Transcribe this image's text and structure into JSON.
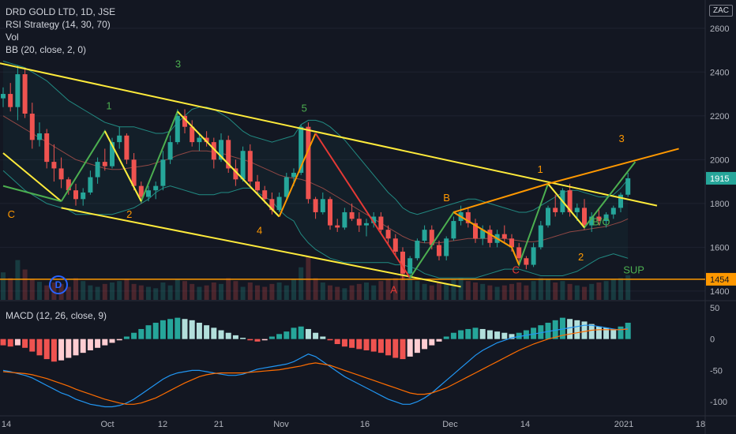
{
  "legend": {
    "title": "DRD GOLD LTD, 1D, JSE",
    "indicators": [
      "RSI Strategy (14, 30, 70)",
      "Vol",
      "BB (20, close, 2, 0)"
    ],
    "macd": "MACD (12, 26, close, 9)"
  },
  "currency": "ZAC",
  "logo_letter": "D",
  "colors": {
    "background": "#131722",
    "up": "#26a69a",
    "down": "#ef5350",
    "yellow_line": "#ffeb3b",
    "orange_line": "#ff9800",
    "green_line": "#4caf50",
    "red_line": "#e53935",
    "bollinger": "#26a69a",
    "support": "#ff9800",
    "macd_line": "#2196f3",
    "signal_line": "#ff6d00"
  },
  "chart_data": {
    "type": "candlestick",
    "price_axis": {
      "ticks": [
        "2600",
        "2400",
        "2200",
        "2000",
        "1800",
        "1600",
        "1400"
      ],
      "range": [
        1360,
        2700
      ]
    },
    "macd_axis": {
      "ticks": [
        "50",
        "0",
        "-50",
        "-100"
      ],
      "range": [
        -120,
        60
      ]
    },
    "x_axis": {
      "ticks": [
        "14",
        "Oct",
        "12",
        "21",
        "Nov",
        "16",
        "Dec",
        "14",
        "2021",
        "18"
      ]
    },
    "last_price": {
      "value": 1915,
      "label": "1915"
    },
    "support": {
      "value": 1454,
      "label": "1454",
      "text": "SUP"
    },
    "candles": [
      [
        2280,
        2330,
        2240,
        2300
      ],
      [
        2300,
        2350,
        2220,
        2240
      ],
      [
        2240,
        2430,
        2180,
        2390
      ],
      [
        2390,
        2420,
        2190,
        2210
      ],
      [
        2210,
        2260,
        2050,
        2090
      ],
      [
        2090,
        2170,
        2060,
        2120
      ],
      [
        2120,
        2140,
        1960,
        1990
      ],
      [
        1990,
        2070,
        1900,
        1960
      ],
      [
        1960,
        2010,
        1870,
        1910
      ],
      [
        1910,
        1920,
        1840,
        1860
      ],
      [
        1860,
        1890,
        1790,
        1820
      ],
      [
        1820,
        1870,
        1790,
        1850
      ],
      [
        1850,
        1950,
        1840,
        1920
      ],
      [
        1920,
        2010,
        1890,
        1990
      ],
      [
        1990,
        2050,
        1950,
        1970
      ],
      [
        1970,
        2100,
        1960,
        2080
      ],
      [
        2080,
        2150,
        2050,
        2110
      ],
      [
        2110,
        2120,
        1980,
        2000
      ],
      [
        2000,
        2030,
        1860,
        1880
      ],
      [
        1880,
        1900,
        1800,
        1830
      ],
      [
        1830,
        1880,
        1810,
        1860
      ],
      [
        1860,
        1900,
        1820,
        1880
      ],
      [
        1880,
        2040,
        1860,
        2000
      ],
      [
        2000,
        2110,
        1980,
        2080
      ],
      [
        2080,
        2230,
        2070,
        2200
      ],
      [
        2200,
        2230,
        2120,
        2150
      ],
      [
        2150,
        2180,
        2060,
        2080
      ],
      [
        2080,
        2120,
        2040,
        2100
      ],
      [
        2100,
        2130,
        2060,
        2080
      ],
      [
        2080,
        2100,
        1960,
        2000
      ],
      [
        2000,
        2120,
        1990,
        2090
      ],
      [
        2090,
        2110,
        1940,
        1960
      ],
      [
        1960,
        2000,
        1880,
        1910
      ],
      [
        1910,
        2060,
        1900,
        2040
      ],
      [
        2040,
        2070,
        1880,
        1900
      ],
      [
        1900,
        1930,
        1840,
        1860
      ],
      [
        1860,
        1880,
        1800,
        1820
      ],
      [
        1820,
        1850,
        1750,
        1770
      ],
      [
        1770,
        1850,
        1760,
        1830
      ],
      [
        1830,
        1940,
        1820,
        1920
      ],
      [
        1920,
        1960,
        1880,
        1940
      ],
      [
        1940,
        2160,
        1930,
        2150
      ],
      [
        2150,
        2170,
        1800,
        1820
      ],
      [
        1820,
        1830,
        1730,
        1760
      ],
      [
        1760,
        1850,
        1750,
        1820
      ],
      [
        1820,
        1830,
        1680,
        1700
      ],
      [
        1700,
        1730,
        1670,
        1690
      ],
      [
        1690,
        1780,
        1680,
        1760
      ],
      [
        1760,
        1800,
        1720,
        1730
      ],
      [
        1730,
        1760,
        1670,
        1700
      ],
      [
        1700,
        1730,
        1650,
        1710
      ],
      [
        1710,
        1760,
        1690,
        1740
      ],
      [
        1740,
        1760,
        1660,
        1680
      ],
      [
        1680,
        1700,
        1610,
        1640
      ],
      [
        1640,
        1660,
        1560,
        1580
      ],
      [
        1580,
        1600,
        1450,
        1480
      ],
      [
        1480,
        1560,
        1460,
        1550
      ],
      [
        1550,
        1640,
        1540,
        1630
      ],
      [
        1630,
        1700,
        1620,
        1680
      ],
      [
        1680,
        1700,
        1590,
        1610
      ],
      [
        1610,
        1630,
        1540,
        1560
      ],
      [
        1560,
        1650,
        1540,
        1640
      ],
      [
        1640,
        1740,
        1630,
        1720
      ],
      [
        1720,
        1790,
        1700,
        1760
      ],
      [
        1760,
        1780,
        1690,
        1710
      ],
      [
        1710,
        1730,
        1620,
        1640
      ],
      [
        1640,
        1700,
        1610,
        1680
      ],
      [
        1680,
        1700,
        1600,
        1620
      ],
      [
        1620,
        1680,
        1600,
        1660
      ],
      [
        1660,
        1700,
        1620,
        1640
      ],
      [
        1640,
        1660,
        1580,
        1600
      ],
      [
        1600,
        1620,
        1530,
        1550
      ],
      [
        1550,
        1560,
        1500,
        1520
      ],
      [
        1520,
        1620,
        1510,
        1600
      ],
      [
        1600,
        1720,
        1590,
        1700
      ],
      [
        1700,
        1790,
        1690,
        1780
      ],
      [
        1780,
        1840,
        1740,
        1760
      ],
      [
        1760,
        1870,
        1750,
        1860
      ],
      [
        1860,
        1890,
        1740,
        1760
      ],
      [
        1760,
        1800,
        1720,
        1780
      ],
      [
        1780,
        1820,
        1680,
        1700
      ],
      [
        1700,
        1760,
        1670,
        1740
      ],
      [
        1740,
        1780,
        1700,
        1720
      ],
      [
        1720,
        1760,
        1690,
        1750
      ],
      [
        1750,
        1790,
        1730,
        1780
      ],
      [
        1780,
        1850,
        1760,
        1840
      ],
      [
        1840,
        1940,
        1830,
        1915
      ]
    ],
    "volume": [
      38,
      30,
      55,
      42,
      28,
      25,
      20,
      24,
      22,
      18,
      30,
      26,
      20,
      18,
      22,
      24,
      26,
      28,
      22,
      20,
      18,
      16,
      24,
      20,
      28,
      26,
      22,
      18,
      20,
      24,
      22,
      30,
      26,
      18,
      24,
      20,
      18,
      22,
      24,
      20,
      28,
      45,
      60,
      30,
      24,
      20,
      18,
      16,
      20,
      22,
      24,
      20,
      26,
      28,
      30,
      40,
      34,
      26,
      22,
      20,
      24,
      22,
      28,
      30,
      26,
      24,
      22,
      20,
      18,
      20,
      22,
      24,
      20,
      26,
      30,
      28,
      24,
      26,
      22,
      20,
      18,
      22,
      24,
      26,
      28,
      30,
      34
    ],
    "macd_hist": [
      -10,
      -12,
      -10,
      -14,
      -20,
      -26,
      -32,
      -36,
      -34,
      -30,
      -26,
      -22,
      -18,
      -14,
      -10,
      -6,
      -2,
      4,
      10,
      16,
      22,
      26,
      30,
      32,
      34,
      32,
      30,
      26,
      22,
      18,
      14,
      10,
      6,
      2,
      -2,
      -4,
      -2,
      4,
      8,
      12,
      18,
      20,
      16,
      10,
      4,
      -2,
      -8,
      -12,
      -14,
      -16,
      -18,
      -20,
      -22,
      -26,
      -30,
      -32,
      -28,
      -22,
      -16,
      -10,
      -4,
      4,
      10,
      14,
      16,
      18,
      16,
      14,
      12,
      10,
      8,
      10,
      14,
      18,
      22,
      26,
      30,
      34,
      32,
      30,
      28,
      24,
      20,
      18,
      16,
      20,
      26
    ],
    "macd_line": [
      -50,
      -52,
      -55,
      -58,
      -62,
      -68,
      -74,
      -80,
      -86,
      -90,
      -96,
      -100,
      -104,
      -106,
      -108,
      -108,
      -106,
      -102,
      -96,
      -88,
      -80,
      -72,
      -64,
      -58,
      -54,
      -52,
      -50,
      -50,
      -52,
      -54,
      -56,
      -58,
      -58,
      -56,
      -52,
      -48,
      -46,
      -44,
      -42,
      -40,
      -36,
      -30,
      -24,
      -28,
      -36,
      -44,
      -52,
      -60,
      -66,
      -72,
      -78,
      -84,
      -90,
      -96,
      -100,
      -104,
      -104,
      -100,
      -94,
      -86,
      -76,
      -66,
      -56,
      -46,
      -36,
      -26,
      -18,
      -12,
      -6,
      -2,
      2,
      4,
      6,
      8,
      10,
      12,
      14,
      16,
      18,
      20,
      22,
      22,
      20,
      18,
      16,
      14,
      18
    ],
    "signal_line": [
      -52,
      -53,
      -54,
      -55,
      -57,
      -60,
      -63,
      -67,
      -71,
      -75,
      -80,
      -84,
      -88,
      -92,
      -96,
      -99,
      -102,
      -104,
      -104,
      -102,
      -98,
      -94,
      -88,
      -82,
      -76,
      -70,
      -65,
      -60,
      -57,
      -55,
      -54,
      -54,
      -54,
      -54,
      -53,
      -52,
      -51,
      -50,
      -49,
      -47,
      -45,
      -43,
      -40,
      -38,
      -40,
      -42,
      -46,
      -50,
      -54,
      -58,
      -62,
      -66,
      -70,
      -74,
      -78,
      -82,
      -86,
      -88,
      -88,
      -86,
      -82,
      -78,
      -72,
      -66,
      -60,
      -54,
      -48,
      -42,
      -36,
      -30,
      -24,
      -18,
      -13,
      -8,
      -4,
      0,
      3,
      6,
      8,
      10,
      12,
      14,
      15,
      15,
      15,
      15,
      16
    ],
    "bollinger": {
      "upper": [
        2450,
        2440,
        2430,
        2420,
        2400,
        2380,
        2360,
        2330,
        2300,
        2270,
        2250,
        2230,
        2210,
        2190,
        2170,
        2160,
        2150,
        2150,
        2150,
        2140,
        2130,
        2120,
        2120,
        2130,
        2170,
        2200,
        2230,
        2240,
        2240,
        2230,
        2210,
        2190,
        2160,
        2130,
        2110,
        2100,
        2090,
        2080,
        2090,
        2100,
        2110,
        2160,
        2180,
        2180,
        2170,
        2150,
        2120,
        2090,
        2050,
        2010,
        1970,
        1930,
        1890,
        1850,
        1820,
        1780,
        1760,
        1750,
        1760,
        1770,
        1780,
        1790,
        1800,
        1810,
        1820,
        1820,
        1810,
        1800,
        1790,
        1780,
        1770,
        1760,
        1760,
        1770,
        1790,
        1810,
        1830,
        1850,
        1860,
        1860,
        1850,
        1840,
        1830,
        1830,
        1840,
        1870,
        1910
      ],
      "middle": [
        2200,
        2180,
        2160,
        2140,
        2120,
        2100,
        2080,
        2060,
        2040,
        2020,
        2000,
        1990,
        1980,
        1970,
        1960,
        1955,
        1955,
        1960,
        1965,
        1970,
        1975,
        1985,
        1995,
        2005,
        2020,
        2030,
        2040,
        2040,
        2040,
        2035,
        2030,
        2020,
        2010,
        2000,
        1990,
        1975,
        1960,
        1945,
        1930,
        1920,
        1915,
        1910,
        1900,
        1885,
        1870,
        1850,
        1830,
        1810,
        1790,
        1770,
        1750,
        1730,
        1710,
        1690,
        1670,
        1650,
        1635,
        1625,
        1620,
        1620,
        1620,
        1625,
        1630,
        1635,
        1640,
        1640,
        1640,
        1640,
        1640,
        1640,
        1635,
        1630,
        1625,
        1625,
        1630,
        1640,
        1650,
        1660,
        1670,
        1675,
        1680,
        1685,
        1690,
        1695,
        1705,
        1715,
        1730
      ],
      "lower": [
        1950,
        1920,
        1890,
        1860,
        1840,
        1820,
        1800,
        1790,
        1780,
        1770,
        1750,
        1750,
        1750,
        1750,
        1750,
        1750,
        1760,
        1770,
        1780,
        1800,
        1820,
        1850,
        1870,
        1880,
        1870,
        1860,
        1850,
        1840,
        1840,
        1840,
        1850,
        1850,
        1860,
        1870,
        1870,
        1850,
        1830,
        1810,
        1770,
        1740,
        1720,
        1660,
        1620,
        1590,
        1570,
        1550,
        1540,
        1530,
        1530,
        1530,
        1530,
        1530,
        1530,
        1530,
        1520,
        1520,
        1510,
        1500,
        1480,
        1470,
        1460,
        1460,
        1460,
        1460,
        1460,
        1460,
        1470,
        1480,
        1490,
        1500,
        1500,
        1500,
        1490,
        1480,
        1470,
        1470,
        1470,
        1470,
        1480,
        1490,
        1510,
        1530,
        1550,
        1560,
        1570,
        1560,
        1550
      ]
    },
    "annotations": {
      "wave_labels": [
        {
          "text": "C",
          "color": "orange",
          "bar": 2,
          "price": 1735
        },
        {
          "text": "1",
          "color": "green",
          "bar": 26,
          "price": 2230
        },
        {
          "text": "2",
          "color": "orange",
          "bar": 31,
          "price": 1735
        },
        {
          "text": "3",
          "color": "green",
          "bar": 43,
          "price": 2420
        },
        {
          "text": "4",
          "color": "orange",
          "bar": 63,
          "price": 1660
        },
        {
          "text": "5",
          "color": "green",
          "bar": 74,
          "price": 2220
        },
        {
          "text": "A",
          "color": "red",
          "bar": 96,
          "price": 1390
        },
        {
          "text": "B",
          "color": "orange",
          "bar": 109,
          "price": 1810
        },
        {
          "text": "1",
          "color": "orange",
          "bar": 132,
          "price": 1940
        },
        {
          "text": "C",
          "color": "red",
          "bar": 126,
          "price": 1480
        },
        {
          "text": "2",
          "color": "orange",
          "bar": 142,
          "price": 1540
        },
        {
          "text": "3",
          "color": "orange",
          "bar": 152,
          "price": 2080
        },
        {
          "text": "B/O",
          "color": "green",
          "bar": 147,
          "price": 1700
        },
        {
          "text": "SUP",
          "color": "green",
          "bar": 155,
          "price": 1480
        }
      ]
    }
  }
}
